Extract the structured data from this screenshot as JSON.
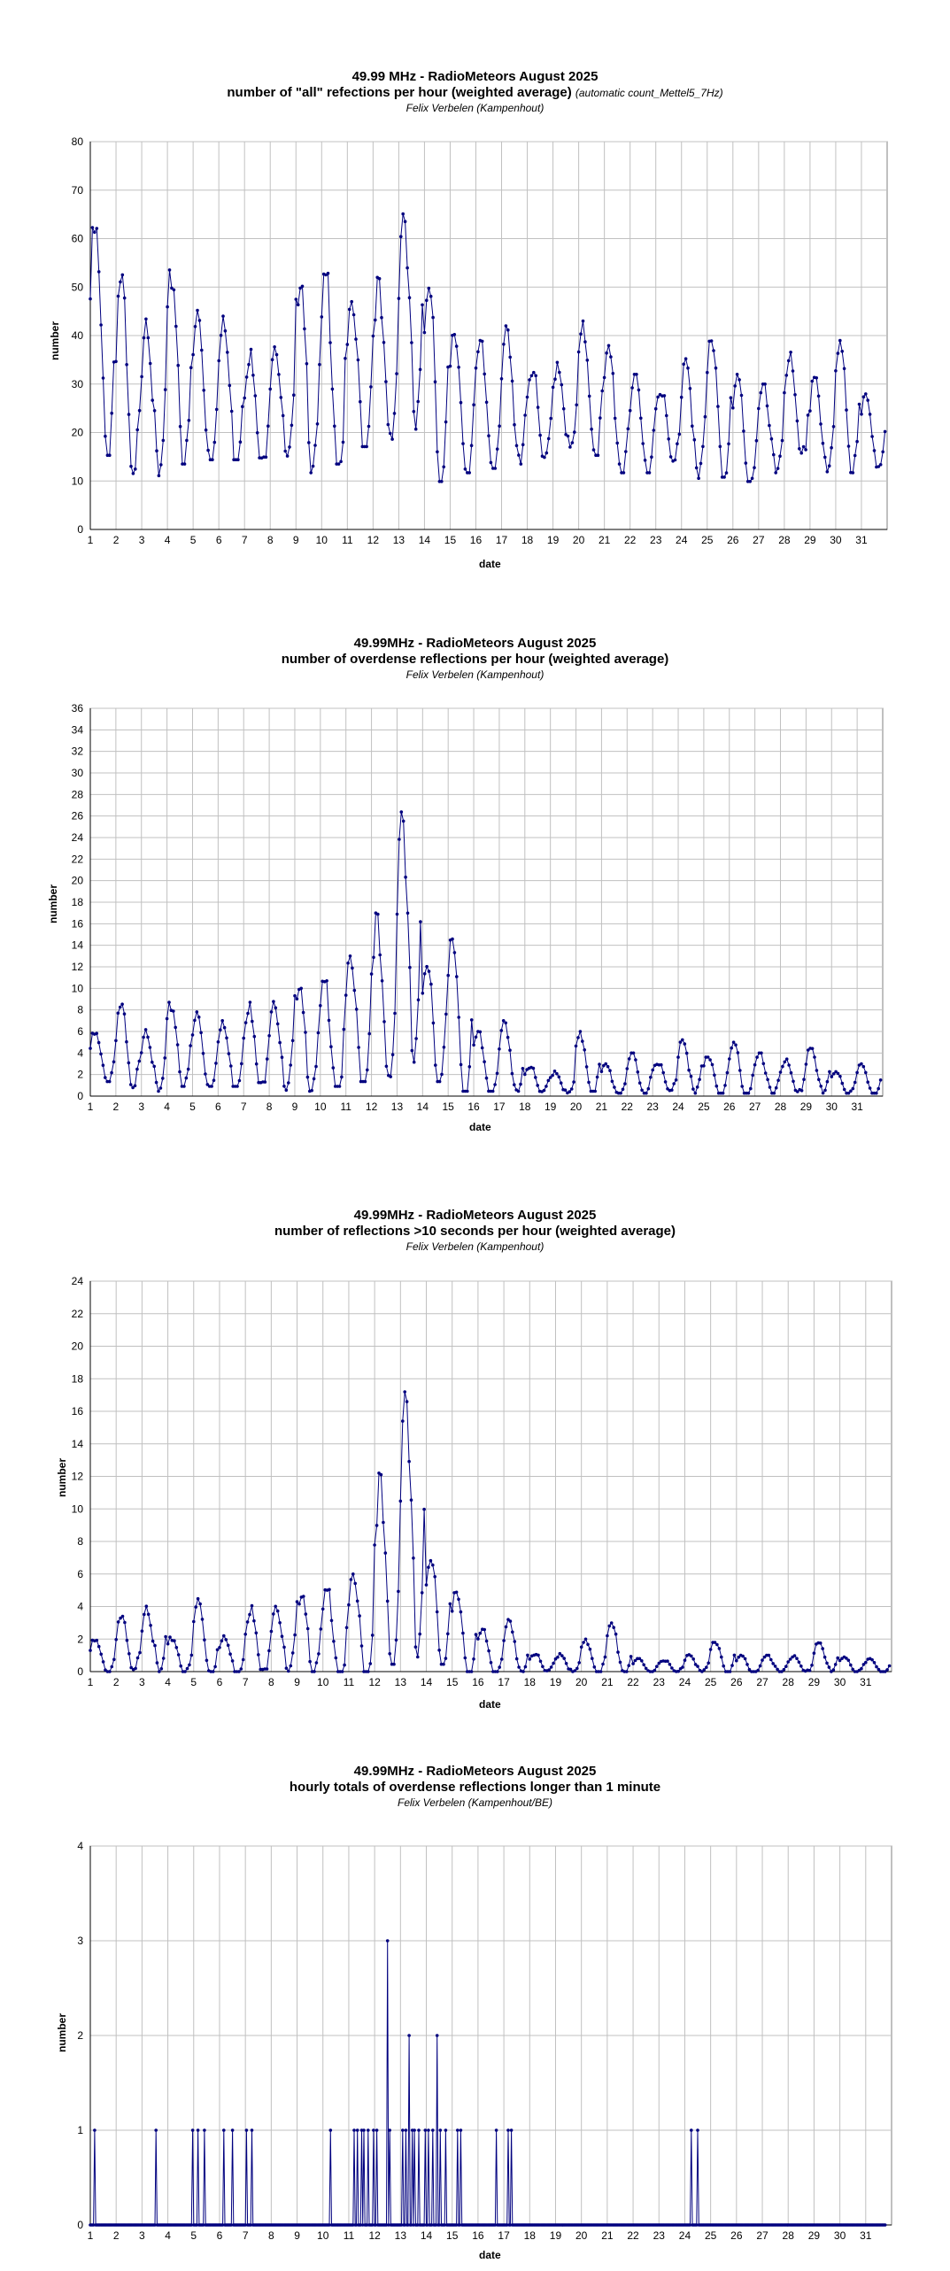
{
  "colors": {
    "series": "#00007f",
    "grid": "#c0c0c0",
    "axis": "#000000"
  },
  "chart_data": [
    {
      "type": "line",
      "title": "49.99 MHz - RadioMeteors August 2025",
      "subtitle": "number of \"all\" refections per hour (weighted average)",
      "subtitle_note": "(automatic count_Mettel5_7Hz)",
      "author": "Felix Verbelen (Kampenhout)",
      "xlabel": "date",
      "ylabel": "number",
      "ylim": [
        0,
        80
      ],
      "yticks": [
        0,
        10,
        20,
        30,
        40,
        50,
        60,
        70,
        80
      ],
      "xlim": [
        1,
        32
      ],
      "xticks": [
        "1",
        "2",
        "3",
        "4",
        "5",
        "6",
        "7",
        "8",
        "9",
        "10",
        "11",
        "12",
        "13",
        "14",
        "15",
        "16",
        "17",
        "18",
        "19",
        "20",
        "21",
        "22",
        "23",
        "24",
        "25",
        "26",
        "27",
        "28",
        "29",
        "30",
        "31"
      ],
      "grid": true,
      "x_unit": "day of August 2025 (fractional)",
      "day_peaks": [
        64,
        55,
        48,
        55,
        46,
        44,
        38,
        41,
        58,
        54,
        47,
        52,
        69,
        57,
        42,
        39,
        42,
        35,
        36,
        43,
        38,
        32,
        31,
        39,
        42,
        32,
        30,
        37,
        34,
        42,
        28
      ],
      "day_lows": [
        17,
        10,
        12,
        15,
        16,
        16,
        14,
        15,
        13,
        15,
        19,
        20,
        23,
        11,
        13,
        14,
        15,
        14,
        17,
        17,
        13,
        13,
        14,
        11,
        12,
        11,
        13,
        15,
        12,
        13,
        14
      ]
    },
    {
      "type": "line",
      "title": "49.99MHz - RadioMeteors August 2025",
      "subtitle": "number of overdense reflections per hour (weighted average)",
      "author": "Felix Verbelen (Kampenhout)",
      "xlabel": "date",
      "ylabel": "number",
      "ylim": [
        0,
        36
      ],
      "yticks": [
        0,
        2,
        4,
        6,
        8,
        10,
        12,
        14,
        16,
        18,
        20,
        22,
        24,
        26,
        28,
        30,
        32,
        34,
        36
      ],
      "xlim": [
        1,
        32
      ],
      "xticks": [
        "1",
        "2",
        "3",
        "4",
        "5",
        "6",
        "7",
        "8",
        "9",
        "10",
        "11",
        "12",
        "13",
        "14",
        "15",
        "16",
        "17",
        "18",
        "19",
        "20",
        "21",
        "22",
        "23",
        "24",
        "25",
        "26",
        "27",
        "28",
        "29",
        "30",
        "31"
      ],
      "grid": true,
      "x_unit": "day of August 2025 (fractional)",
      "day_peaks": [
        6,
        9,
        7,
        9,
        8,
        7,
        9,
        10,
        12,
        11,
        13,
        17,
        28.5,
        14,
        15.5,
        6,
        7,
        3,
        2.5,
        6,
        3,
        4,
        3.5,
        6,
        4,
        5,
        4,
        3.5,
        5,
        2.5,
        3
      ],
      "day_lows": [
        1.5,
        0.5,
        0.5,
        1,
        1,
        1,
        1,
        0.5,
        0.5,
        1,
        1.5,
        2,
        3.5,
        1.5,
        0.5,
        0.5,
        0.5,
        0.3,
        0.3,
        0.5,
        0.3,
        0.3,
        0.5,
        0.3,
        0.3,
        0.3,
        0.3,
        0.3,
        0.3,
        0.3,
        0.3
      ]
    },
    {
      "type": "line",
      "title": "49.99MHz - RadioMeteors August 2025",
      "subtitle": "number of reflections >10 seconds per hour (weighted average)",
      "author": "Felix Verbelen (Kampenhout)",
      "xlabel": "date",
      "ylabel": "number",
      "ylim": [
        0,
        24
      ],
      "yticks": [
        0,
        2,
        4,
        6,
        8,
        10,
        12,
        14,
        16,
        18,
        20,
        22,
        24
      ],
      "xlim": [
        1,
        32
      ],
      "xticks": [
        "1",
        "2",
        "3",
        "4",
        "5",
        "6",
        "7",
        "8",
        "9",
        "10",
        "11",
        "12",
        "13",
        "14",
        "15",
        "16",
        "17",
        "18",
        "19",
        "20",
        "21",
        "22",
        "23",
        "24",
        "25",
        "26",
        "27",
        "28",
        "29",
        "30",
        "31"
      ],
      "grid": true,
      "x_unit": "day of August 2025 (fractional)",
      "day_peaks": [
        2,
        3.6,
        4.6,
        2.2,
        4.6,
        2.2,
        4.2,
        4.6,
        5.6,
        5.2,
        6,
        12.2,
        18.7,
        8,
        5.2,
        2.6,
        3.2,
        1.2,
        1.2,
        2,
        3,
        0.8,
        0.8,
        1.2,
        2,
        1,
        1,
        1,
        2,
        1,
        0.8
      ],
      "day_lows": [
        0,
        0,
        0,
        0,
        0,
        0,
        0,
        0,
        0,
        0,
        0,
        0.5,
        1,
        0.5,
        0,
        0,
        0,
        0,
        0,
        0,
        0,
        0,
        0,
        0,
        0,
        0,
        0,
        0,
        0,
        0,
        0
      ]
    },
    {
      "type": "line",
      "title": "49.99MHz - RadioMeteors August 2025",
      "subtitle": "hourly totals of overdense reflections longer than 1 minute",
      "author": "Felix Verbelen (Kampenhout/BE)",
      "xlabel": "date",
      "ylabel": "number",
      "ylim": [
        0,
        4
      ],
      "yticks": [
        0,
        1,
        2,
        3,
        4
      ],
      "xlim": [
        1,
        32
      ],
      "xticks": [
        "1",
        "2",
        "3",
        "4",
        "5",
        "6",
        "7",
        "8",
        "9",
        "10",
        "11",
        "12",
        "13",
        "14",
        "15",
        "16",
        "17",
        "18",
        "19",
        "20",
        "21",
        "22",
        "23",
        "24",
        "25",
        "26",
        "27",
        "28",
        "29",
        "30",
        "31"
      ],
      "grid": true,
      "x_unit": "day of August 2025 (fractional)",
      "events": [
        {
          "x": 1.15,
          "y": 1
        },
        {
          "x": 3.55,
          "y": 1
        },
        {
          "x": 4.95,
          "y": 1
        },
        {
          "x": 5.15,
          "y": 1
        },
        {
          "x": 5.4,
          "y": 1
        },
        {
          "x": 6.15,
          "y": 1
        },
        {
          "x": 6.5,
          "y": 1
        },
        {
          "x": 7.05,
          "y": 1
        },
        {
          "x": 7.25,
          "y": 1
        },
        {
          "x": 10.3,
          "y": 1
        },
        {
          "x": 11.2,
          "y": 1
        },
        {
          "x": 11.35,
          "y": 1
        },
        {
          "x": 11.5,
          "y": 1
        },
        {
          "x": 11.6,
          "y": 1
        },
        {
          "x": 11.75,
          "y": 1
        },
        {
          "x": 11.95,
          "y": 1
        },
        {
          "x": 12.1,
          "y": 1
        },
        {
          "x": 12.5,
          "y": 3
        },
        {
          "x": 12.6,
          "y": 1
        },
        {
          "x": 13.1,
          "y": 1
        },
        {
          "x": 13.2,
          "y": 1
        },
        {
          "x": 13.35,
          "y": 2
        },
        {
          "x": 13.45,
          "y": 1
        },
        {
          "x": 13.55,
          "y": 1
        },
        {
          "x": 13.7,
          "y": 1
        },
        {
          "x": 13.95,
          "y": 1
        },
        {
          "x": 14.1,
          "y": 1
        },
        {
          "x": 14.25,
          "y": 1
        },
        {
          "x": 14.4,
          "y": 2
        },
        {
          "x": 14.55,
          "y": 1
        },
        {
          "x": 14.75,
          "y": 1
        },
        {
          "x": 15.2,
          "y": 1
        },
        {
          "x": 15.35,
          "y": 1
        },
        {
          "x": 16.7,
          "y": 1
        },
        {
          "x": 17.15,
          "y": 1
        },
        {
          "x": 17.3,
          "y": 1
        },
        {
          "x": 24.25,
          "y": 1
        },
        {
          "x": 24.5,
          "y": 1
        }
      ]
    }
  ]
}
